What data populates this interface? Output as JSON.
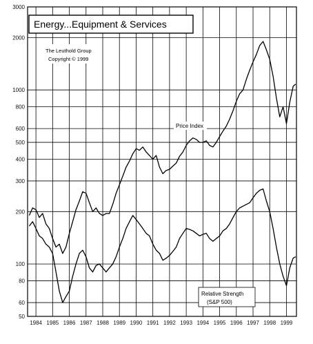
{
  "chart_data": {
    "type": "line",
    "title": "Energy...Equipment & Services",
    "annotations": [
      "The Leuthold Group",
      "Copyright © 1999"
    ],
    "y_scale": "log",
    "ylim": [
      50,
      3000
    ],
    "xlim": [
      1983.5,
      1999.6
    ],
    "y_ticks": [
      {
        "value": 3000,
        "label": "3000"
      },
      {
        "value": 2000,
        "label": "2000"
      },
      {
        "value": 1000,
        "label": "1000"
      },
      {
        "value": 800,
        "label": "800"
      },
      {
        "value": 600,
        "label": "600"
      },
      {
        "value": 500,
        "label": "500"
      },
      {
        "value": 400,
        "label": "400"
      },
      {
        "value": 300,
        "label": "300"
      },
      {
        "value": 200,
        "label": "200"
      },
      {
        "value": 100,
        "label": "100"
      },
      {
        "value": 80,
        "label": "80"
      },
      {
        "value": 60,
        "label": "60"
      },
      {
        "value": 50,
        "label": "50"
      }
    ],
    "x_ticks": [
      {
        "value": 1984,
        "label": "1984"
      },
      {
        "value": 1985,
        "label": "1985"
      },
      {
        "value": 1986,
        "label": "1986"
      },
      {
        "value": 1987,
        "label": "1987"
      },
      {
        "value": 1988,
        "label": "1988"
      },
      {
        "value": 1989,
        "label": "1989"
      },
      {
        "value": 1990,
        "label": "1990"
      },
      {
        "value": 1991,
        "label": "1991"
      },
      {
        "value": 1992,
        "label": "1992"
      },
      {
        "value": 1993,
        "label": "1993"
      },
      {
        "value": 1994,
        "label": "1994"
      },
      {
        "value": 1995,
        "label": "1995"
      },
      {
        "value": 1996,
        "label": "1996"
      },
      {
        "value": 1997,
        "label": "1997"
      },
      {
        "value": 1998,
        "label": "1998"
      },
      {
        "value": 1999,
        "label": "1999"
      }
    ],
    "grid": true,
    "series": [
      {
        "name": "Price Index",
        "points": [
          [
            1983.6,
            190
          ],
          [
            1983.8,
            210
          ],
          [
            1984.0,
            205
          ],
          [
            1984.2,
            185
          ],
          [
            1984.4,
            195
          ],
          [
            1984.6,
            170
          ],
          [
            1984.8,
            160
          ],
          [
            1985.0,
            140
          ],
          [
            1985.2,
            125
          ],
          [
            1985.4,
            130
          ],
          [
            1985.6,
            115
          ],
          [
            1985.8,
            125
          ],
          [
            1986.0,
            150
          ],
          [
            1986.2,
            175
          ],
          [
            1986.4,
            205
          ],
          [
            1986.6,
            230
          ],
          [
            1986.8,
            260
          ],
          [
            1987.0,
            255
          ],
          [
            1987.2,
            225
          ],
          [
            1987.4,
            200
          ],
          [
            1987.6,
            210
          ],
          [
            1987.8,
            195
          ],
          [
            1988.0,
            190
          ],
          [
            1988.2,
            195
          ],
          [
            1988.4,
            195
          ],
          [
            1988.6,
            220
          ],
          [
            1988.8,
            255
          ],
          [
            1989.0,
            285
          ],
          [
            1989.2,
            320
          ],
          [
            1989.4,
            360
          ],
          [
            1989.6,
            390
          ],
          [
            1989.8,
            430
          ],
          [
            1990.0,
            460
          ],
          [
            1990.2,
            450
          ],
          [
            1990.4,
            470
          ],
          [
            1990.6,
            440
          ],
          [
            1990.8,
            420
          ],
          [
            1991.0,
            400
          ],
          [
            1991.2,
            420
          ],
          [
            1991.4,
            360
          ],
          [
            1991.6,
            330
          ],
          [
            1991.8,
            345
          ],
          [
            1992.0,
            350
          ],
          [
            1992.2,
            365
          ],
          [
            1992.4,
            380
          ],
          [
            1992.6,
            415
          ],
          [
            1992.8,
            440
          ],
          [
            1993.0,
            480
          ],
          [
            1993.2,
            510
          ],
          [
            1993.4,
            530
          ],
          [
            1993.6,
            520
          ],
          [
            1993.8,
            500
          ],
          [
            1994.0,
            500
          ],
          [
            1994.2,
            510
          ],
          [
            1994.4,
            480
          ],
          [
            1994.6,
            470
          ],
          [
            1994.8,
            500
          ],
          [
            1995.0,
            540
          ],
          [
            1995.2,
            580
          ],
          [
            1995.4,
            620
          ],
          [
            1995.6,
            680
          ],
          [
            1995.8,
            760
          ],
          [
            1996.0,
            860
          ],
          [
            1996.2,
            950
          ],
          [
            1996.4,
            1000
          ],
          [
            1996.6,
            1150
          ],
          [
            1996.8,
            1300
          ],
          [
            1997.0,
            1450
          ],
          [
            1997.2,
            1600
          ],
          [
            1997.4,
            1800
          ],
          [
            1997.6,
            1900
          ],
          [
            1997.8,
            1700
          ],
          [
            1998.0,
            1500
          ],
          [
            1998.2,
            1200
          ],
          [
            1998.4,
            900
          ],
          [
            1998.6,
            700
          ],
          [
            1998.8,
            800
          ],
          [
            1999.0,
            640
          ],
          [
            1999.2,
            850
          ],
          [
            1999.4,
            1050
          ],
          [
            1999.55,
            1080
          ]
        ]
      },
      {
        "name": "Relative Strength (S&P 500)",
        "points": [
          [
            1983.6,
            165
          ],
          [
            1983.8,
            175
          ],
          [
            1984.0,
            160
          ],
          [
            1984.2,
            145
          ],
          [
            1984.4,
            140
          ],
          [
            1984.6,
            130
          ],
          [
            1984.8,
            125
          ],
          [
            1985.0,
            115
          ],
          [
            1985.2,
            90
          ],
          [
            1985.4,
            70
          ],
          [
            1985.6,
            60
          ],
          [
            1985.8,
            65
          ],
          [
            1986.0,
            70
          ],
          [
            1986.2,
            85
          ],
          [
            1986.4,
            100
          ],
          [
            1986.6,
            115
          ],
          [
            1986.8,
            120
          ],
          [
            1987.0,
            110
          ],
          [
            1987.2,
            95
          ],
          [
            1987.4,
            90
          ],
          [
            1987.6,
            98
          ],
          [
            1987.8,
            100
          ],
          [
            1988.0,
            95
          ],
          [
            1988.2,
            90
          ],
          [
            1988.4,
            95
          ],
          [
            1988.6,
            100
          ],
          [
            1988.8,
            110
          ],
          [
            1989.0,
            125
          ],
          [
            1989.2,
            140
          ],
          [
            1989.4,
            160
          ],
          [
            1989.6,
            175
          ],
          [
            1989.8,
            190
          ],
          [
            1990.0,
            180
          ],
          [
            1990.2,
            170
          ],
          [
            1990.4,
            160
          ],
          [
            1990.6,
            150
          ],
          [
            1990.8,
            145
          ],
          [
            1991.0,
            130
          ],
          [
            1991.2,
            120
          ],
          [
            1991.4,
            115
          ],
          [
            1991.6,
            105
          ],
          [
            1991.8,
            108
          ],
          [
            1992.0,
            112
          ],
          [
            1992.2,
            118
          ],
          [
            1992.4,
            125
          ],
          [
            1992.6,
            140
          ],
          [
            1992.8,
            150
          ],
          [
            1993.0,
            160
          ],
          [
            1993.2,
            158
          ],
          [
            1993.4,
            155
          ],
          [
            1993.6,
            150
          ],
          [
            1993.8,
            145
          ],
          [
            1994.0,
            148
          ],
          [
            1994.2,
            150
          ],
          [
            1994.4,
            140
          ],
          [
            1994.6,
            135
          ],
          [
            1994.8,
            140
          ],
          [
            1995.0,
            145
          ],
          [
            1995.2,
            155
          ],
          [
            1995.4,
            160
          ],
          [
            1995.6,
            170
          ],
          [
            1995.8,
            185
          ],
          [
            1996.0,
            200
          ],
          [
            1996.2,
            210
          ],
          [
            1996.4,
            215
          ],
          [
            1996.6,
            220
          ],
          [
            1996.8,
            225
          ],
          [
            1997.0,
            240
          ],
          [
            1997.2,
            255
          ],
          [
            1997.4,
            265
          ],
          [
            1997.6,
            270
          ],
          [
            1997.8,
            230
          ],
          [
            1998.0,
            200
          ],
          [
            1998.2,
            160
          ],
          [
            1998.4,
            125
          ],
          [
            1998.6,
            100
          ],
          [
            1998.8,
            85
          ],
          [
            1999.0,
            75
          ],
          [
            1999.2,
            95
          ],
          [
            1999.4,
            108
          ],
          [
            1999.55,
            110
          ]
        ]
      }
    ],
    "series_labels": [
      "Price Index",
      "Relative Strength",
      "(S&P 500)"
    ]
  }
}
